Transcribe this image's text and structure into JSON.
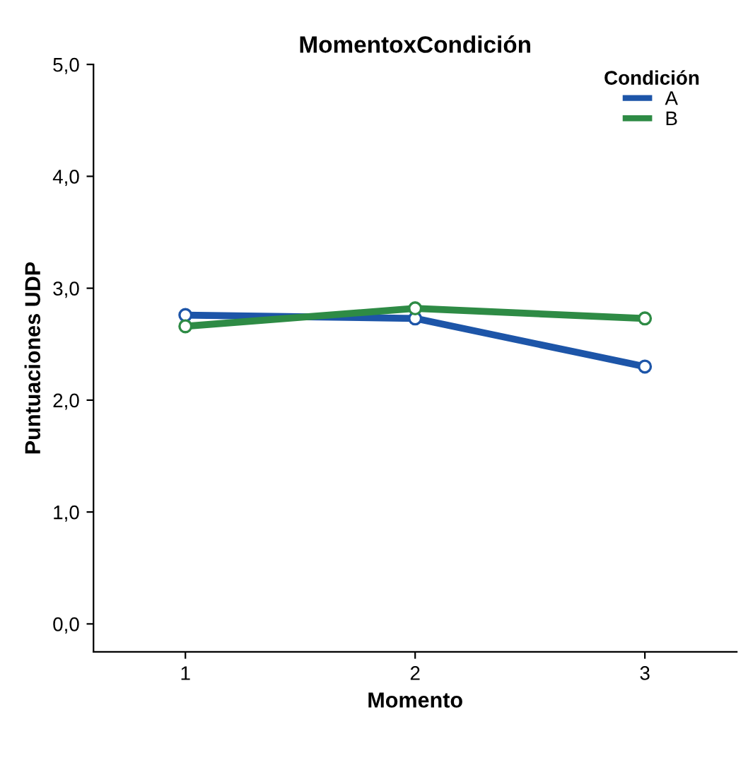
{
  "chart_data": {
    "type": "line",
    "title": "MomentoxCondición",
    "xlabel": "Momento",
    "ylabel": "Puntuaciones UDP",
    "legend_title": "Condición",
    "categories": [
      "1",
      "2",
      "3"
    ],
    "series": [
      {
        "name": "A",
        "color": "#1d55a8",
        "values": [
          2.76,
          2.73,
          2.3
        ]
      },
      {
        "name": "B",
        "color": "#2e8b45",
        "values": [
          2.66,
          2.82,
          2.73
        ]
      }
    ],
    "ylim": [
      -0.25,
      5.0
    ],
    "yticks": [
      {
        "value": 0,
        "label": "0,0"
      },
      {
        "value": 1,
        "label": "1,0"
      },
      {
        "value": 2,
        "label": "2,0"
      },
      {
        "value": 3,
        "label": "3,0"
      },
      {
        "value": 4,
        "label": "4,0"
      },
      {
        "value": 5,
        "label": "5,0"
      }
    ],
    "grid": false,
    "legend": "top right",
    "marker": "circle",
    "line_style": "solid"
  }
}
